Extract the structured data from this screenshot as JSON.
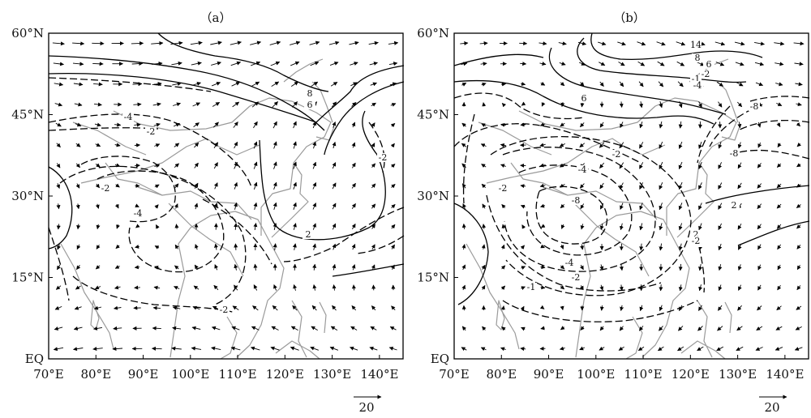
{
  "figure": {
    "panels": [
      {
        "id": "a",
        "label": "（a）",
        "contour_labels": [
          "8",
          "6",
          "-4",
          "-2",
          "-2",
          "-2",
          "-4",
          "2",
          "-2"
        ],
        "scale_label": ""
      },
      {
        "id": "b",
        "label": "（b）",
        "contour_labels": [
          "14",
          "8",
          "6",
          "-2",
          "-1",
          "-4",
          "6",
          "-8",
          "2",
          "-2",
          "-4",
          "-8",
          "-8",
          "-2",
          "2",
          "-4",
          "-2",
          "-1",
          "-1",
          "-2"
        ],
        "scale_label": "20"
      }
    ],
    "y_ticks": [
      "60°N",
      "45°N",
      "30°N",
      "15°N",
      "EQ"
    ],
    "x_ticks": [
      "70°E",
      "80°E",
      "90°E",
      "100°E",
      "110°E",
      "120°E",
      "130°E",
      "140°E"
    ],
    "reference_vector": {
      "label": "20",
      "magnitude": 20
    },
    "extent": {
      "lon": [
        70,
        145
      ],
      "lat": [
        0,
        60
      ]
    },
    "colors": {
      "coastline": "#9a9a9a",
      "contour": "#000000",
      "vector": "#000000",
      "frame": "#000000"
    }
  }
}
